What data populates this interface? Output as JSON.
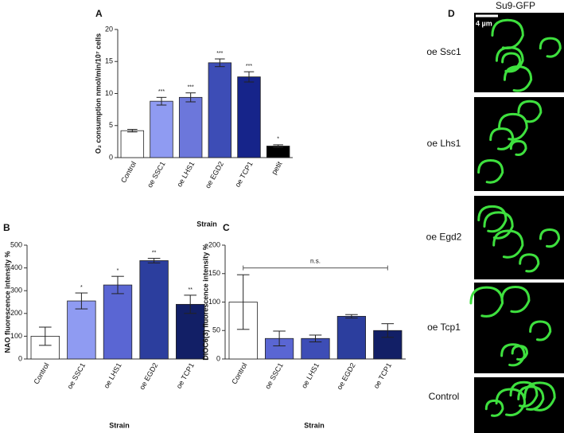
{
  "chart_data": [
    {
      "type": "bar",
      "label": "A",
      "ylabel": "O₂ consumption nmol/min/10⁷ cells",
      "xlabel": "Strain",
      "categories": [
        "Control",
        "oe SSC1",
        "oe LHS1",
        "oe EGD2",
        "oe TCP1",
        "petit"
      ],
      "values": [
        4.2,
        8.8,
        9.4,
        14.8,
        12.6,
        1.8
      ],
      "errors": [
        0.2,
        0.6,
        0.7,
        0.6,
        0.8,
        0.2
      ],
      "annotations": [
        null,
        "***",
        "***",
        "***",
        "***",
        "*"
      ],
      "colors": [
        "#ffffff",
        "#8f9bf2",
        "#6c77db",
        "#3d4db6",
        "#16248a",
        "#000000"
      ],
      "ylim": [
        0,
        20
      ],
      "yticks": [
        0,
        5,
        10,
        15,
        20
      ]
    },
    {
      "type": "bar",
      "label": "B",
      "ylabel": "NAO fluorescence intensity %",
      "xlabel": "Strain",
      "categories": [
        "Control",
        "oe SSC1",
        "oe LHS1",
        "oe EGD2",
        "oe TCP1"
      ],
      "values": [
        100,
        255,
        325,
        432,
        240
      ],
      "errors": [
        40,
        35,
        38,
        10,
        40
      ],
      "annotations": [
        null,
        "*",
        "*",
        "**",
        "**"
      ],
      "colors": [
        "#ffffff",
        "#8f9bf2",
        "#5a66d3",
        "#2c3e9e",
        "#121f66"
      ],
      "ylim": [
        0,
        500
      ],
      "yticks": [
        0,
        100,
        200,
        300,
        400,
        500
      ]
    },
    {
      "type": "bar",
      "label": "C",
      "ylabel": "DIOC6(3) fluorescence intensity %",
      "xlabel": "Strain",
      "categories": [
        "Control",
        "oe SSC1",
        "oe LHS1",
        "oe EGD2",
        "oe TCP1"
      ],
      "values": [
        100,
        36,
        36,
        75,
        50
      ],
      "errors": [
        48,
        13,
        6,
        3,
        12
      ],
      "bracket_label": "n.s.",
      "colors": [
        "#ffffff",
        "#5a66d3",
        "#3d4db6",
        "#2c3e9e",
        "#121f66"
      ],
      "ylim": [
        0,
        200
      ],
      "yticks": [
        0,
        50,
        100,
        150,
        200
      ]
    }
  ],
  "panel_d": {
    "label": "D",
    "title": "Su9-GFP",
    "scale": "4 µm",
    "rows": [
      "oe Ssc1",
      "oe Lhs1",
      "oe Egd2",
      "oe Tcp1",
      "Control"
    ]
  }
}
